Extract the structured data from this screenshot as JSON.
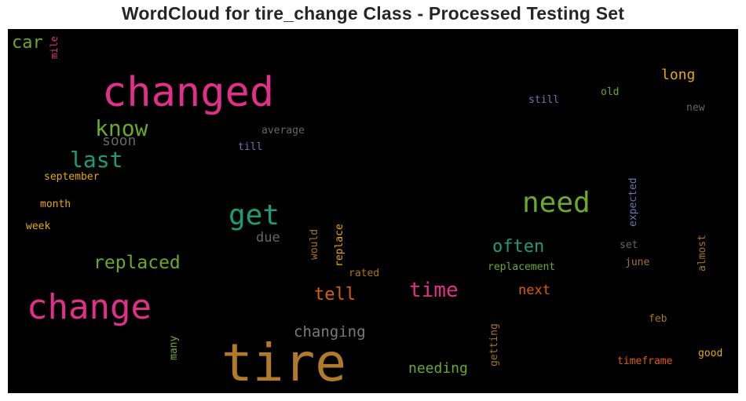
{
  "title": "WordCloud for tire_change Class - Processed Testing Set",
  "words": [
    {
      "text": "tire",
      "color": "#b07a2a"
    },
    {
      "text": "changed",
      "color": "#e0308a"
    },
    {
      "text": "change",
      "color": "#e0308a"
    },
    {
      "text": "need",
      "color": "#6aa92a"
    },
    {
      "text": "get",
      "color": "#1b9e77"
    },
    {
      "text": "know",
      "color": "#6aa92a"
    },
    {
      "text": "last",
      "color": "#1b9e77"
    },
    {
      "text": "replaced",
      "color": "#6aa92a"
    },
    {
      "text": "time",
      "color": "#e0308a"
    },
    {
      "text": "often",
      "color": "#1b9e77"
    },
    {
      "text": "tell",
      "color": "#d95f02"
    },
    {
      "text": "car",
      "color": "#6aa92a"
    },
    {
      "text": "long",
      "color": "#e6ab02"
    },
    {
      "text": "changing",
      "color": "#7a7a7a"
    },
    {
      "text": "needing",
      "color": "#6aa92a"
    },
    {
      "text": "next",
      "color": "#d95f02"
    },
    {
      "text": "soon",
      "color": "#666666"
    },
    {
      "text": "due",
      "color": "#666666"
    },
    {
      "text": "replacement",
      "color": "#6aa92a"
    },
    {
      "text": "average",
      "color": "#666666"
    },
    {
      "text": "still",
      "color": "#7570b3"
    },
    {
      "text": "old",
      "color": "#6aa92a"
    },
    {
      "text": "new",
      "color": "#666666"
    },
    {
      "text": "till",
      "color": "#7570b3"
    },
    {
      "text": "september",
      "color": "#e6ab02"
    },
    {
      "text": "month",
      "color": "#e6ab02"
    },
    {
      "text": "week",
      "color": "#e6ab02"
    },
    {
      "text": "rated",
      "color": "#a6761d"
    },
    {
      "text": "set",
      "color": "#666666"
    },
    {
      "text": "june",
      "color": "#a6761d"
    },
    {
      "text": "feb",
      "color": "#a6761d"
    },
    {
      "text": "timeframe",
      "color": "#d95f02"
    },
    {
      "text": "good",
      "color": "#e6ab02"
    },
    {
      "text": "mile",
      "color": "#e0308a"
    },
    {
      "text": "would",
      "color": "#a6761d"
    },
    {
      "text": "replace",
      "color": "#e6ab02"
    },
    {
      "text": "expected",
      "color": "#7570b3"
    },
    {
      "text": "almost",
      "color": "#a6761d"
    },
    {
      "text": "many",
      "color": "#6aa92a"
    },
    {
      "text": "getting",
      "color": "#a6761d"
    }
  ]
}
